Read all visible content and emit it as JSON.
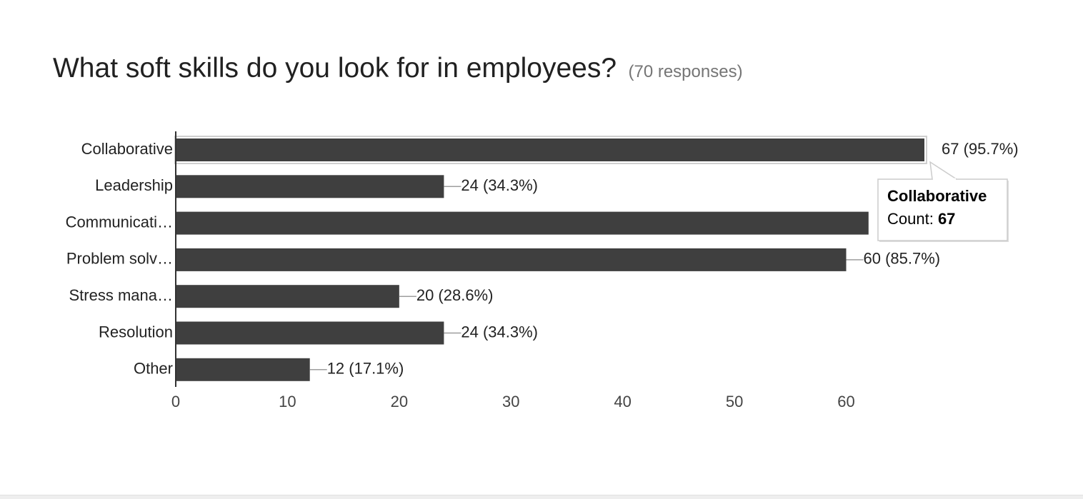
{
  "header": {
    "title": "What soft skills do you look for in employees?",
    "responses": "(70 responses)"
  },
  "chart_data": {
    "type": "bar",
    "orientation": "horizontal",
    "categories": [
      "Collaborative",
      "Leadership",
      "Communicati…",
      "Problem solv…",
      "Stress mana…",
      "Resolution",
      "Other"
    ],
    "values": [
      67,
      24,
      62,
      60,
      20,
      24,
      12
    ],
    "value_labels": [
      "67 (95.7%)",
      "24 (34.3%)",
      "",
      "60 (85.7%)",
      "20 (28.6%)",
      "24 (34.3%)",
      "12 (17.1%)"
    ],
    "xlim": [
      0,
      67
    ],
    "xticks": [
      0,
      10,
      20,
      30,
      40,
      50,
      60
    ],
    "bar_color": "#3f3f3f",
    "highlight_index": 0,
    "tooltip": {
      "title": "Collaborative",
      "count_label": "Count: ",
      "count_value": "67"
    }
  }
}
